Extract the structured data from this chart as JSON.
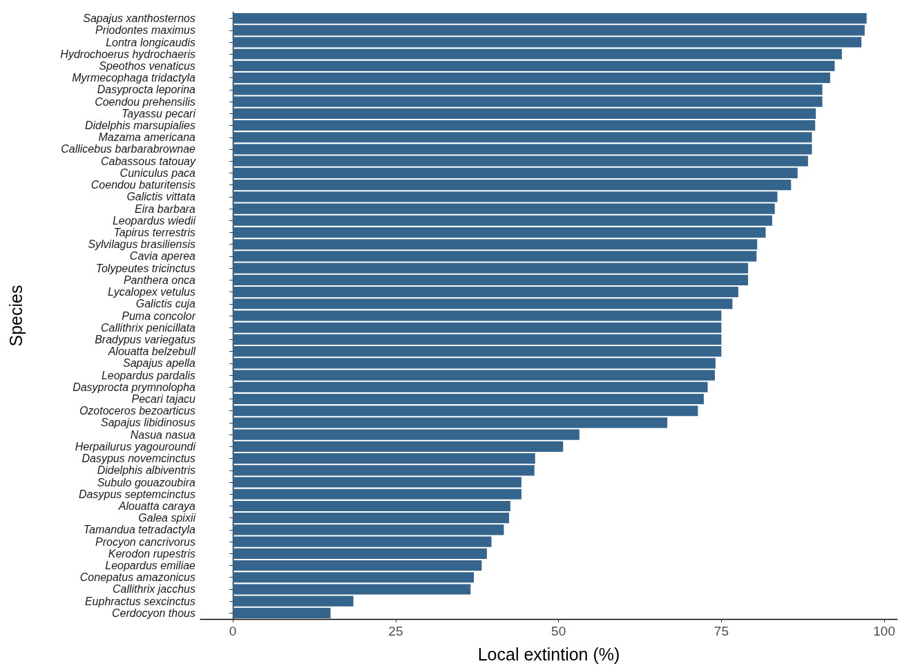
{
  "chart_data": {
    "type": "bar",
    "orientation": "horizontal",
    "xlabel": "Local extintion (%)",
    "ylabel": "Species",
    "color": "#35648c",
    "categories": [
      "Sapajus xanthosternos",
      "Priodontes maximus",
      "Lontra longicaudis",
      "Hydrochoerus hydrochaeris",
      "Speothos venaticus",
      "Myrmecophaga tridactyla",
      "Dasyprocta leporina",
      "Coendou prehensilis",
      "Tayassu pecari",
      "Didelphis marsupialies",
      "Mazama americana",
      "Callicebus barbarabrownae",
      "Cabassous tatouay",
      "Cuniculus paca",
      "Coendou baturitensis",
      "Galictis vittata",
      "Eira barbara",
      "Leopardus wiedii",
      "Tapirus terrestris",
      "Sylvilagus brasiliensis",
      "Cavia aperea",
      "Tolypeutes tricinctus",
      "Panthera onca",
      "Lycalopex vetulus",
      "Galictis cuja",
      "Puma concolor",
      "Callithrix penicillata",
      "Bradypus variegatus",
      "Alouatta belzebull",
      "Sapajus apella",
      "Leopardus pardalis",
      "Dasyprocta prymnolopha",
      "Pecari tajacu",
      "Ozotoceros bezoarticus",
      "Sapajus libidinosus",
      "Nasua nasua",
      "Herpailurus yagouroundi",
      "Dasypus novemcinctus",
      "Didelphis albiventris",
      "Subulo gouazoubira",
      "Dasypus septemcinctus",
      "Alouatta caraya",
      "Galea spixii",
      "Tamandua tetradactyla",
      "Procyon cancrivorus",
      "Kerodon rupestris",
      "Leopardus emiliae",
      "Conepatus amazonicus",
      "Callithrix jacchus",
      "Euphractus sexcinctus",
      "Cerdocyon thous"
    ],
    "values": [
      97.3,
      97.0,
      96.5,
      93.5,
      92.4,
      91.7,
      90.5,
      90.5,
      89.5,
      89.4,
      88.9,
      88.9,
      88.3,
      86.7,
      85.7,
      83.6,
      83.2,
      82.8,
      81.8,
      80.5,
      80.4,
      79.1,
      79.1,
      77.6,
      76.7,
      75,
      75,
      75,
      75,
      74.1,
      74.0,
      72.9,
      72.3,
      71.4,
      66.7,
      53.2,
      50.7,
      46.4,
      46.3,
      44.3,
      44.3,
      42.6,
      42.4,
      41.6,
      39.7,
      39.0,
      38.2,
      37.0,
      36.5,
      18.5,
      15.0
    ],
    "xlim": [
      -5,
      102
    ],
    "xticks": [
      0,
      25,
      50,
      75,
      100
    ]
  }
}
